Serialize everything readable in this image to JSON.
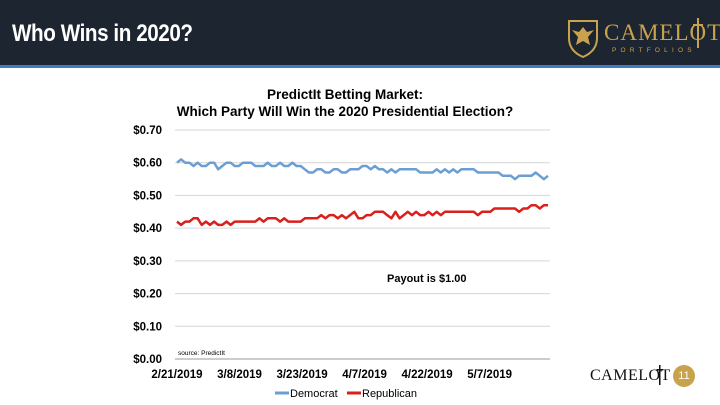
{
  "header": {
    "title": "Who Wins in 2020?",
    "logo_word": "CAMELOT",
    "logo_sub": "PORTFOLIOS"
  },
  "colors": {
    "header_bg": "#1c2530",
    "accent": "#3d7cc9",
    "gold": "#c9a24e",
    "democrat": "#6b9fd4",
    "republican": "#d9201c"
  },
  "footer": {
    "logo_word": "CAMELOT",
    "page_number": "11"
  },
  "chart_data": {
    "type": "line",
    "title_line1": "PredictIt Betting Market:",
    "title_line2": "Which Party Will Win the 2020 Presidential Election?",
    "x_tick_labels": [
      "2/21/2019",
      "3/8/2019",
      "3/23/2019",
      "4/7/2019",
      "4/22/2019",
      "5/7/2019"
    ],
    "x_range": [
      "2019-02-21",
      "2019-05-21"
    ],
    "y_tick_labels": [
      "$0.00",
      "$0.10",
      "$0.20",
      "$0.30",
      "$0.40",
      "$0.50",
      "$0.60",
      "$0.70"
    ],
    "ylim": [
      0,
      0.7
    ],
    "y_step": 0.1,
    "grid": "horizontal",
    "annotation": "Payout is $1.00",
    "source_note": "source: PredictIt",
    "legend_position": "bottom-center",
    "series": [
      {
        "name": "Democrat",
        "color": "#6b9fd4",
        "values": [
          0.6,
          0.61,
          0.6,
          0.6,
          0.59,
          0.6,
          0.59,
          0.59,
          0.6,
          0.6,
          0.58,
          0.59,
          0.6,
          0.6,
          0.59,
          0.59,
          0.6,
          0.6,
          0.6,
          0.59,
          0.59,
          0.59,
          0.6,
          0.59,
          0.59,
          0.6,
          0.59,
          0.59,
          0.6,
          0.59,
          0.59,
          0.58,
          0.57,
          0.57,
          0.58,
          0.58,
          0.57,
          0.57,
          0.58,
          0.58,
          0.57,
          0.57,
          0.58,
          0.58,
          0.58,
          0.59,
          0.59,
          0.58,
          0.59,
          0.58,
          0.58,
          0.57,
          0.58,
          0.57,
          0.58,
          0.58,
          0.58,
          0.58,
          0.58,
          0.57,
          0.57,
          0.57,
          0.57,
          0.58,
          0.57,
          0.58,
          0.57,
          0.58,
          0.57,
          0.58,
          0.58,
          0.58,
          0.58,
          0.57,
          0.57,
          0.57,
          0.57,
          0.57,
          0.57,
          0.56,
          0.56,
          0.56,
          0.55,
          0.56,
          0.56,
          0.56,
          0.56,
          0.57,
          0.56,
          0.55,
          0.56
        ]
      },
      {
        "name": "Republican",
        "color": "#d9201c",
        "values": [
          0.42,
          0.41,
          0.42,
          0.42,
          0.43,
          0.43,
          0.41,
          0.42,
          0.41,
          0.42,
          0.41,
          0.41,
          0.42,
          0.41,
          0.42,
          0.42,
          0.42,
          0.42,
          0.42,
          0.42,
          0.43,
          0.42,
          0.43,
          0.43,
          0.43,
          0.42,
          0.43,
          0.42,
          0.42,
          0.42,
          0.42,
          0.43,
          0.43,
          0.43,
          0.43,
          0.44,
          0.43,
          0.44,
          0.44,
          0.43,
          0.44,
          0.43,
          0.44,
          0.45,
          0.43,
          0.43,
          0.44,
          0.44,
          0.45,
          0.45,
          0.45,
          0.44,
          0.43,
          0.45,
          0.43,
          0.44,
          0.45,
          0.44,
          0.45,
          0.44,
          0.44,
          0.45,
          0.44,
          0.45,
          0.44,
          0.45,
          0.45,
          0.45,
          0.45,
          0.45,
          0.45,
          0.45,
          0.45,
          0.44,
          0.45,
          0.45,
          0.45,
          0.46,
          0.46,
          0.46,
          0.46,
          0.46,
          0.46,
          0.45,
          0.46,
          0.46,
          0.47,
          0.47,
          0.46,
          0.47,
          0.47
        ]
      }
    ]
  }
}
